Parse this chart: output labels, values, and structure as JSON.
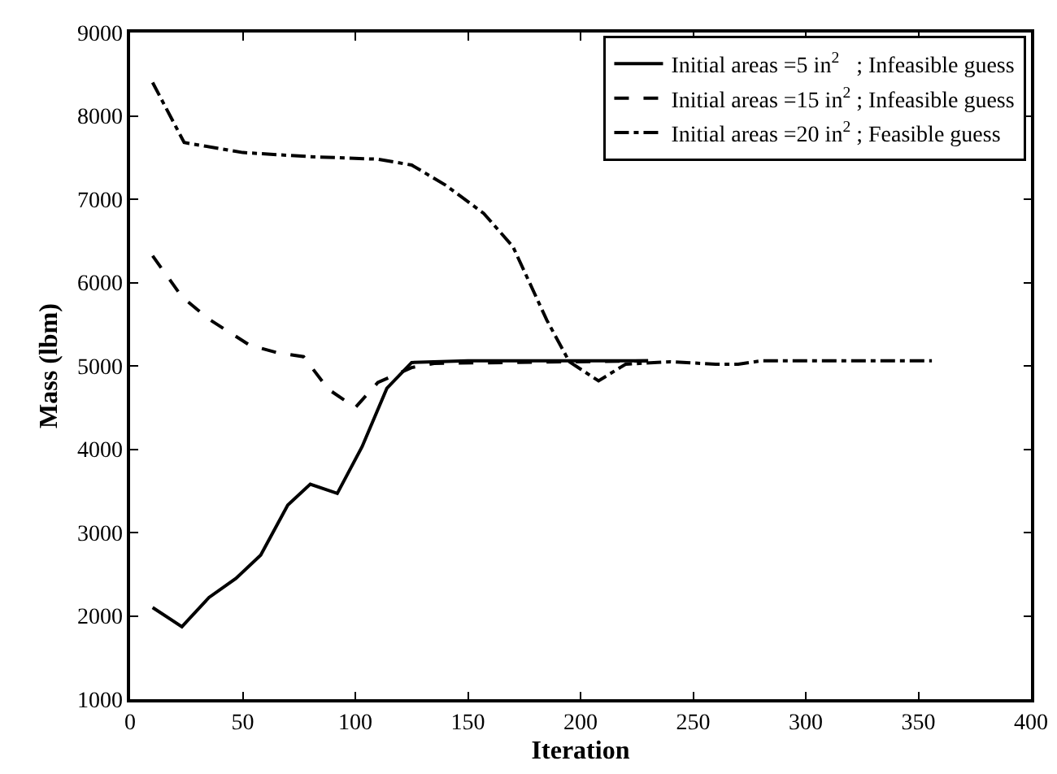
{
  "chart_data": {
    "type": "line",
    "xlabel": "Iteration",
    "ylabel": "Mass (lbm)",
    "xlim": [
      0,
      400
    ],
    "xticks": [
      0,
      50,
      100,
      150,
      200,
      250,
      300,
      350,
      400
    ],
    "ylim": [
      1000,
      9000
    ],
    "yticks": [
      1000,
      2000,
      3000,
      4000,
      5000,
      6000,
      7000,
      8000,
      9000
    ],
    "grid": false,
    "legend": "top right",
    "marker": "none",
    "series": [
      {
        "name": "Initial areas =5 in$^{2}$   ; Infeasible guess",
        "color": "#000000",
        "line_style": "solid",
        "x": [
          10,
          23,
          35,
          47,
          58,
          70,
          80,
          92,
          103,
          114,
          125,
          150,
          230
        ],
        "values": [
          2100,
          1870,
          2220,
          2450,
          2730,
          3330,
          3580,
          3470,
          4030,
          4730,
          5040,
          5060,
          5060
        ]
      },
      {
        "name": "Initial areas =15 in$^{2}$ ; Infeasible guess",
        "color": "#000000",
        "line_style": "dashed",
        "x": [
          10,
          23,
          35,
          53,
          65,
          77,
          88,
          100,
          110,
          125,
          135,
          230
        ],
        "values": [
          6320,
          5830,
          5560,
          5250,
          5160,
          5110,
          4720,
          4500,
          4800,
          4980,
          5030,
          5060
        ]
      },
      {
        "name": "Initial areas =20 in$^{2}$ ; Feasible guess",
        "color": "#000000",
        "line_style": "dashdot",
        "x": [
          10,
          24,
          50,
          80,
          110,
          125,
          140,
          157,
          170,
          185,
          195,
          208,
          220,
          240,
          260,
          270,
          280,
          356
        ],
        "values": [
          8400,
          7680,
          7560,
          7510,
          7480,
          7410,
          7170,
          6830,
          6430,
          5550,
          5050,
          4820,
          5020,
          5050,
          5020,
          5020,
          5060,
          5060
        ]
      }
    ]
  }
}
